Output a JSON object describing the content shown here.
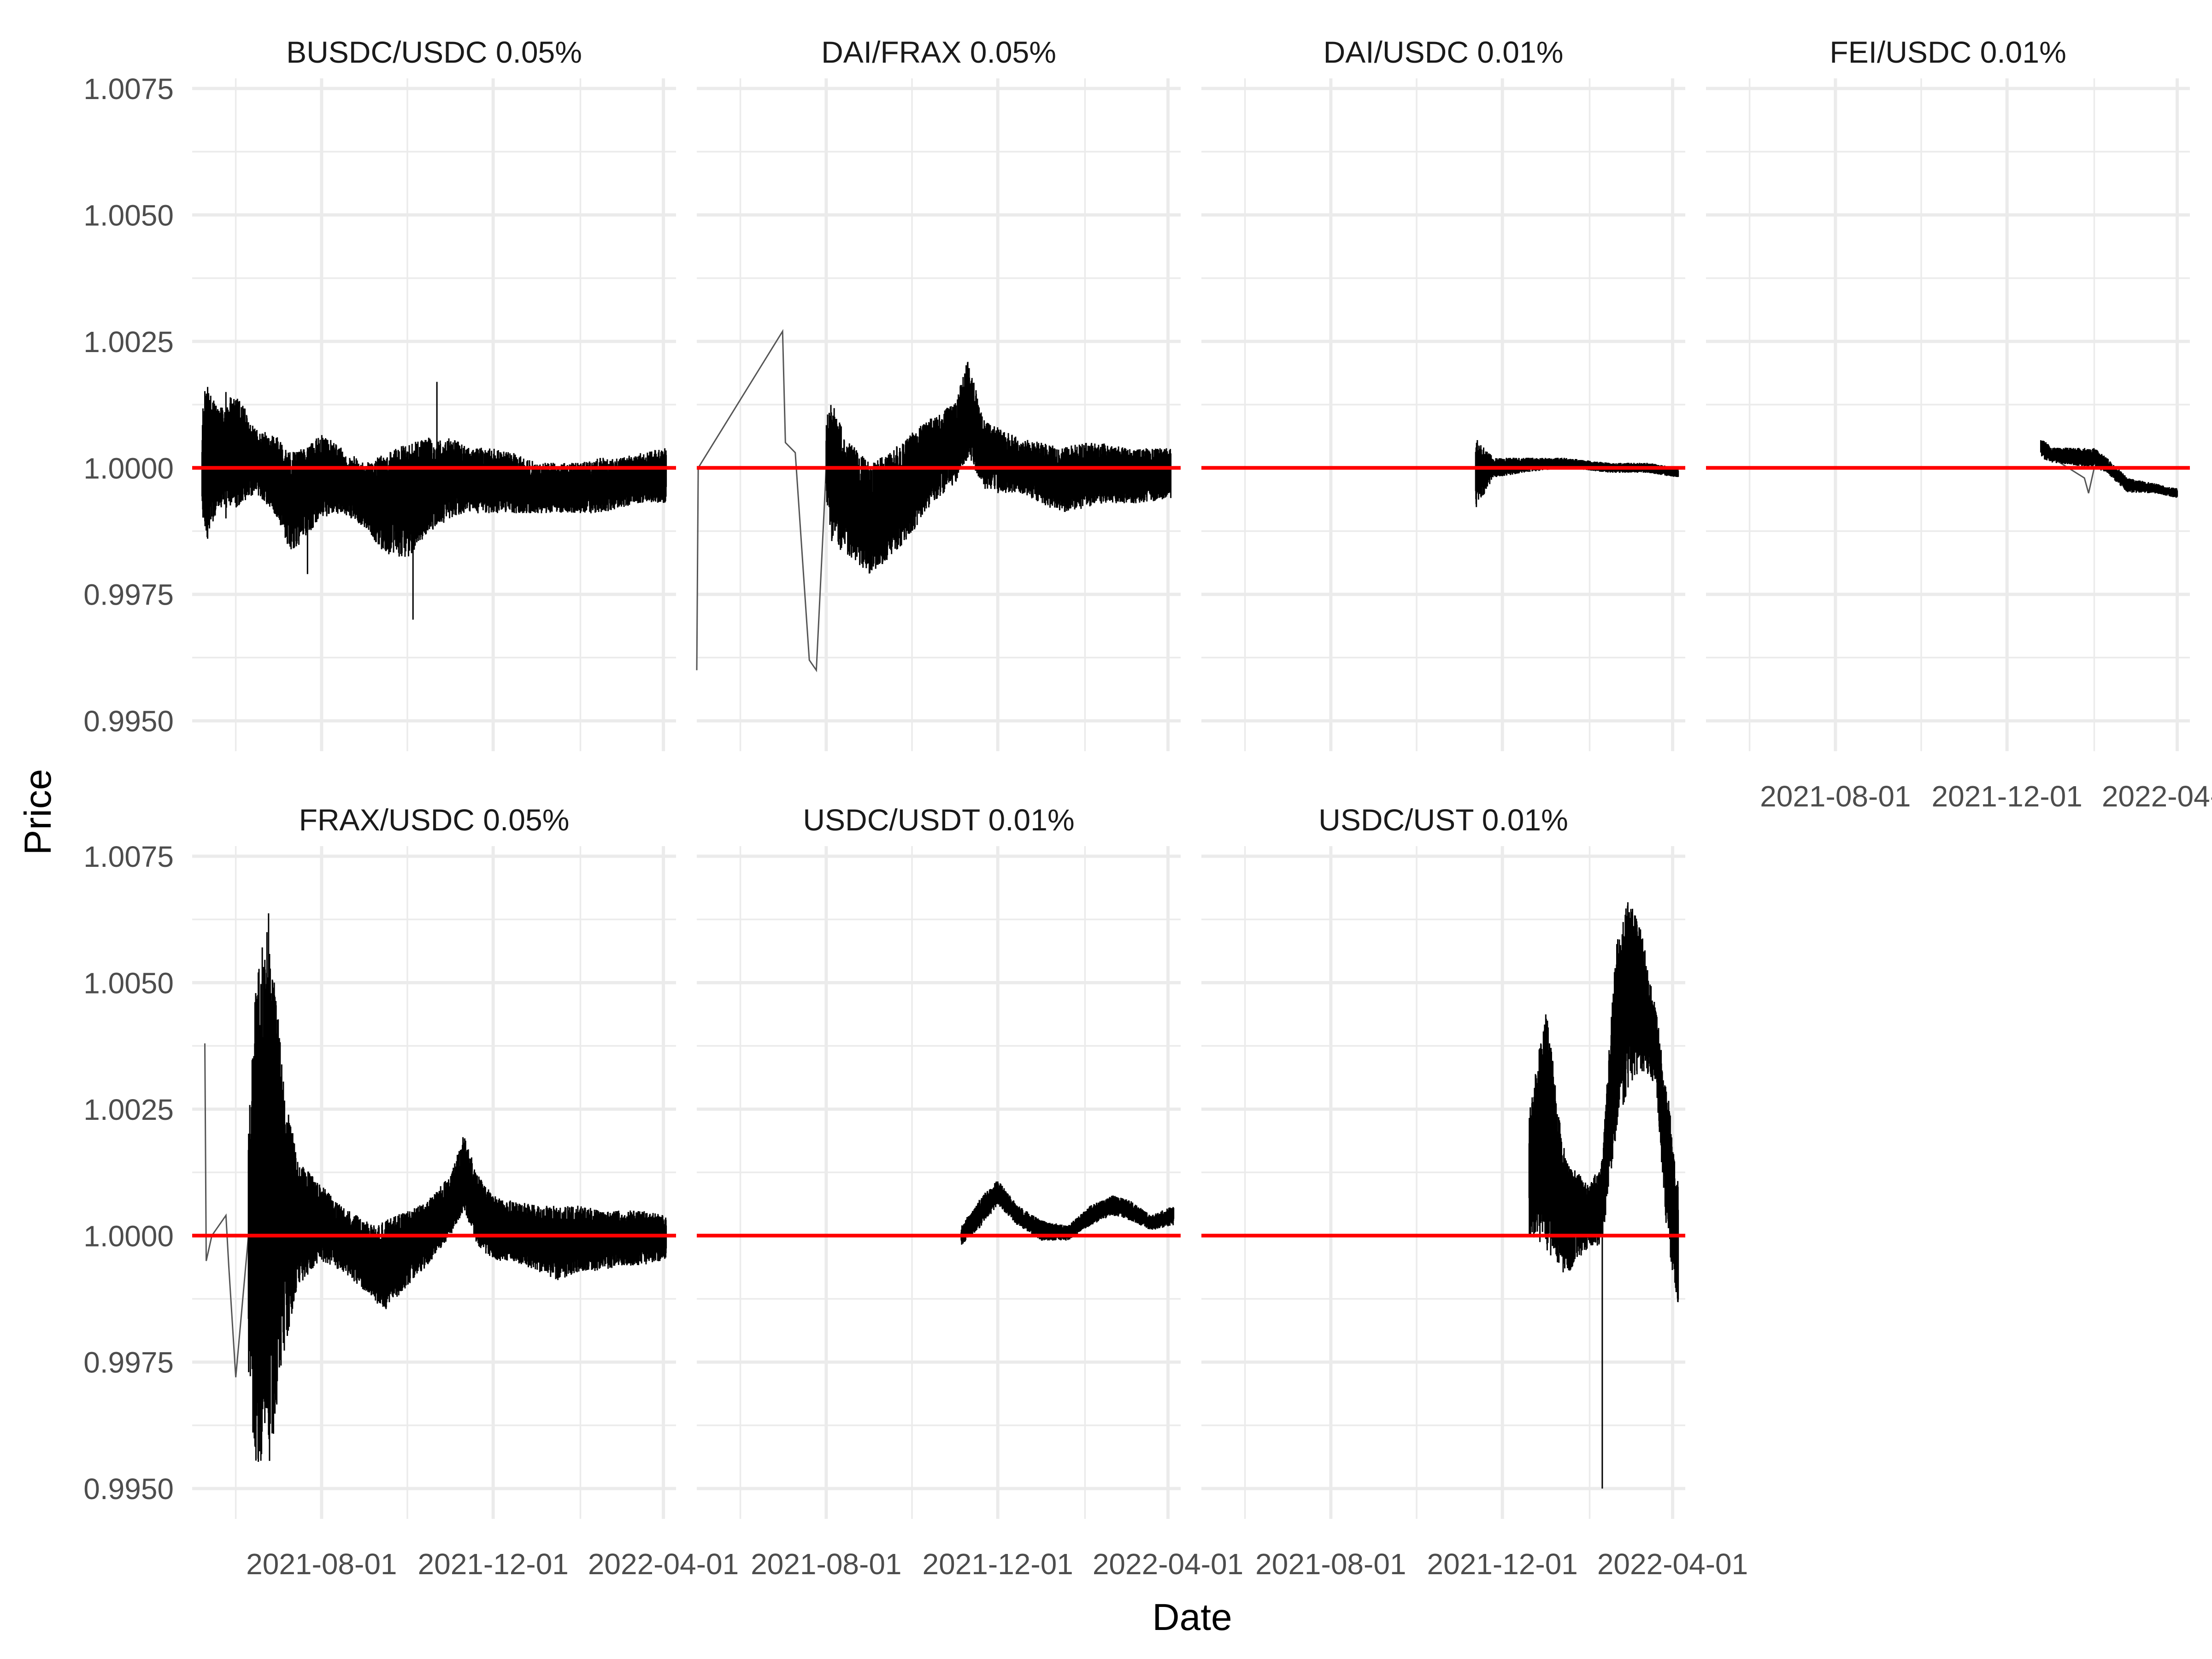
{
  "chart_data": {
    "type": "line",
    "layout": "facet-wrap",
    "xlabel": "Date",
    "ylabel": "Price",
    "x_axis": {
      "min": "2021-05-01",
      "max": "2022-04-10",
      "ticks": [
        "2021-08-01",
        "2021-12-01",
        "2022-04-01"
      ]
    },
    "y_axis": {
      "min": 0.9944,
      "max": 1.0077,
      "ticks": [
        "0.9950",
        "0.9975",
        "1.0000",
        "1.0025",
        "1.0050",
        "1.0075"
      ],
      "ylim": [
        0.9944,
        1.0077
      ]
    },
    "reference_line": {
      "y": 1.0,
      "color": "#ff0000"
    },
    "series_color": "#000000",
    "facets": [
      {
        "title": "BUSDC/USDC 0.05%",
        "band": [
          [
            "2021-05-08",
            0.999,
            1.001
          ],
          [
            "2021-05-10",
            0.9985,
            1.0016
          ],
          [
            "2021-05-20",
            0.9992,
            1.0012
          ],
          [
            "2021-06-01",
            0.9992,
            1.0015
          ],
          [
            "2021-06-15",
            0.9995,
            1.0008
          ],
          [
            "2021-07-01",
            0.999,
            1.0006
          ],
          [
            "2021-07-10",
            0.9983,
            1.0003
          ],
          [
            "2021-07-20",
            0.9986,
            1.0004
          ],
          [
            "2021-08-01",
            0.999,
            1.0007
          ],
          [
            "2021-08-15",
            0.9991,
            1.0004
          ],
          [
            "2021-09-01",
            0.9988,
            1.0001
          ],
          [
            "2021-09-15",
            0.9983,
            1.0003
          ],
          [
            "2021-10-01",
            0.9982,
            1.0005
          ],
          [
            "2021-10-15",
            0.9987,
            1.0006
          ],
          [
            "2021-11-01",
            0.999,
            1.0006
          ],
          [
            "2021-11-15",
            0.9991,
            1.0004
          ],
          [
            "2021-12-01",
            0.9991,
            1.0004
          ],
          [
            "2021-12-15",
            0.9991,
            1.0003
          ],
          [
            "2022-01-01",
            0.9991,
            1.0001
          ],
          [
            "2022-01-15",
            0.9991,
            1.0001
          ],
          [
            "2022-02-01",
            0.9991,
            1.0001
          ],
          [
            "2022-02-15",
            0.9991,
            1.0002
          ],
          [
            "2022-03-01",
            0.9992,
            1.0002
          ],
          [
            "2022-03-15",
            0.9993,
            1.0003
          ],
          [
            "2022-04-03",
            0.9993,
            1.0004
          ]
        ],
        "spikes": [
          [
            "2021-05-12",
            0.9986,
            1.0016
          ],
          [
            "2021-05-25",
            0.999,
            1.0015
          ],
          [
            "2021-07-22",
            0.9979,
            1.0004
          ],
          [
            "2021-10-05",
            0.997,
            1.0003
          ],
          [
            "2021-10-22",
            0.999,
            1.0017
          ]
        ]
      },
      {
        "title": "DAI/FRAX 0.05%",
        "band": [
          [
            "2021-08-01",
            0.9993,
            1.001
          ],
          [
            "2021-08-05",
            0.9985,
            1.0013
          ],
          [
            "2021-08-15",
            0.9983,
            1.0006
          ],
          [
            "2021-09-01",
            0.9979,
            1.0001
          ],
          [
            "2021-09-15",
            0.9982,
            1.0003
          ],
          [
            "2021-10-01",
            0.9987,
            1.0007
          ],
          [
            "2021-10-15",
            0.9993,
            1.001
          ],
          [
            "2021-11-01",
            0.9997,
            1.0013
          ],
          [
            "2021-11-10",
            1.0002,
            1.0022
          ],
          [
            "2021-11-20",
            0.9996,
            1.001
          ],
          [
            "2021-12-01",
            0.9995,
            1.0008
          ],
          [
            "2021-12-15",
            0.9995,
            1.0006
          ],
          [
            "2022-01-01",
            0.9993,
            1.0005
          ],
          [
            "2022-01-15",
            0.9991,
            1.0004
          ],
          [
            "2022-02-01",
            0.9992,
            1.0005
          ],
          [
            "2022-02-15",
            0.9993,
            1.0005
          ],
          [
            "2022-03-01",
            0.9993,
            1.0004
          ],
          [
            "2022-03-15",
            0.9993,
            1.0004
          ],
          [
            "2022-04-03",
            0.9994,
            1.0004
          ]
        ],
        "thin_line": [
          [
            "2021-05-01",
            0.996
          ],
          [
            "2021-05-02",
            1.0
          ],
          [
            "2021-07-01",
            1.0027
          ],
          [
            "2021-07-03",
            1.0005
          ],
          [
            "2021-07-10",
            1.0003
          ],
          [
            "2021-07-20",
            0.9962
          ],
          [
            "2021-07-25",
            0.996
          ],
          [
            "2021-08-01",
            1.0
          ]
        ],
        "spikes": []
      },
      {
        "title": "DAI/USDC 0.01%",
        "band": [
          [
            "2021-11-12",
            0.9992,
            1.0006
          ],
          [
            "2021-11-25",
            0.9998,
            1.0002
          ],
          [
            "2021-12-15",
            0.9999,
            1.0002
          ],
          [
            "2022-01-15",
            1.0,
            1.0002
          ],
          [
            "2022-02-15",
            0.9999,
            1.0001
          ],
          [
            "2022-03-15",
            0.9999,
            1.0001
          ],
          [
            "2022-04-05",
            0.9998,
            1.0
          ]
        ],
        "spikes": []
      },
      {
        "title": "FEI/USDC 0.01%",
        "band": [
          [
            "2021-12-25",
            1.0002,
            1.0006
          ],
          [
            "2022-01-02",
            1.0001,
            1.0004
          ],
          [
            "2022-02-01",
            1.0,
            1.0004
          ],
          [
            "2022-02-10",
            0.9999,
            1.0002
          ],
          [
            "2022-02-25",
            0.9995,
            0.9998
          ],
          [
            "2022-03-15",
            0.9995,
            0.9997
          ],
          [
            "2022-04-01",
            0.9994,
            0.9996
          ]
        ],
        "thin_line": [
          [
            "2022-01-02",
            1.0002
          ],
          [
            "2022-01-25",
            0.9998
          ],
          [
            "2022-01-28",
            0.9995
          ],
          [
            "2022-02-01",
            1.0
          ]
        ],
        "spikes": []
      },
      {
        "title": "FRAX/USDC 0.05%",
        "band": [
          [
            "2021-06-10",
            0.997,
            1.002
          ],
          [
            "2021-06-15",
            0.9955,
            1.005
          ],
          [
            "2021-06-25",
            0.9953,
            1.0065
          ],
          [
            "2021-07-05",
            0.9976,
            1.003
          ],
          [
            "2021-07-15",
            0.999,
            1.0015
          ],
          [
            "2021-08-01",
            0.9995,
            1.001
          ],
          [
            "2021-08-15",
            0.9993,
            1.0006
          ],
          [
            "2021-09-01",
            0.9989,
            1.0003
          ],
          [
            "2021-09-15",
            0.9985,
            1.0003
          ],
          [
            "2021-10-01",
            0.999,
            1.0005
          ],
          [
            "2021-10-15",
            0.9994,
            1.0007
          ],
          [
            "2021-11-01",
            1.0,
            1.0012
          ],
          [
            "2021-11-10",
            1.0005,
            1.002
          ],
          [
            "2021-11-20",
            0.9998,
            1.0012
          ],
          [
            "2021-12-01",
            0.9995,
            1.0008
          ],
          [
            "2021-12-15",
            0.9995,
            1.0007
          ],
          [
            "2022-01-01",
            0.9993,
            1.0006
          ],
          [
            "2022-01-15",
            0.9991,
            1.0006
          ],
          [
            "2022-02-01",
            0.9993,
            1.0006
          ],
          [
            "2022-02-15",
            0.9993,
            1.0005
          ],
          [
            "2022-03-01",
            0.9994,
            1.0005
          ],
          [
            "2022-03-15",
            0.9994,
            1.0005
          ],
          [
            "2022-04-03",
            0.9995,
            1.0004
          ]
        ],
        "thin_line": [
          [
            "2021-05-10",
            1.0038
          ],
          [
            "2021-05-11",
            0.9995
          ],
          [
            "2021-05-15",
            1.0
          ],
          [
            "2021-05-25",
            1.0004
          ],
          [
            "2021-05-27",
            0.9994
          ],
          [
            "2021-06-01",
            0.9972
          ],
          [
            "2021-06-10",
            1.0
          ]
        ],
        "spikes": []
      },
      {
        "title": "USDC/USDT 0.01%",
        "band": [
          [
            "2021-11-05",
            0.9998,
            1.0002
          ],
          [
            "2021-11-20",
            1.0002,
            1.0008
          ],
          [
            "2021-12-01",
            1.0006,
            1.0011
          ],
          [
            "2021-12-15",
            1.0002,
            1.0006
          ],
          [
            "2022-01-01",
            0.9999,
            1.0003
          ],
          [
            "2022-01-20",
            0.9999,
            1.0002
          ],
          [
            "2022-02-05",
            1.0002,
            1.0006
          ],
          [
            "2022-02-20",
            1.0004,
            1.0008
          ],
          [
            "2022-03-05",
            1.0003,
            1.0007
          ],
          [
            "2022-03-20",
            1.0001,
            1.0004
          ],
          [
            "2022-04-05",
            1.0002,
            1.0006
          ]
        ],
        "spikes": []
      },
      {
        "title": "USDC/UST 0.01%",
        "band": [
          [
            "2021-12-20",
            1.0,
            1.0025
          ],
          [
            "2022-01-01",
            0.9997,
            1.0045
          ],
          [
            "2022-01-15",
            0.9992,
            1.0015
          ],
          [
            "2022-02-01",
            0.9998,
            1.001
          ],
          [
            "2022-02-10",
            0.9998,
            1.0015
          ],
          [
            "2022-02-20",
            1.002,
            1.006
          ],
          [
            "2022-03-01",
            1.003,
            1.0067
          ],
          [
            "2022-03-10",
            1.0032,
            1.006
          ],
          [
            "2022-03-20",
            1.003,
            1.0045
          ],
          [
            "2022-03-28",
            1.0,
            1.003
          ],
          [
            "2022-04-05",
            0.9985,
            1.001
          ]
        ],
        "spikes": [
          [
            "2022-02-10",
            0.995,
            1.0005
          ]
        ]
      }
    ]
  }
}
